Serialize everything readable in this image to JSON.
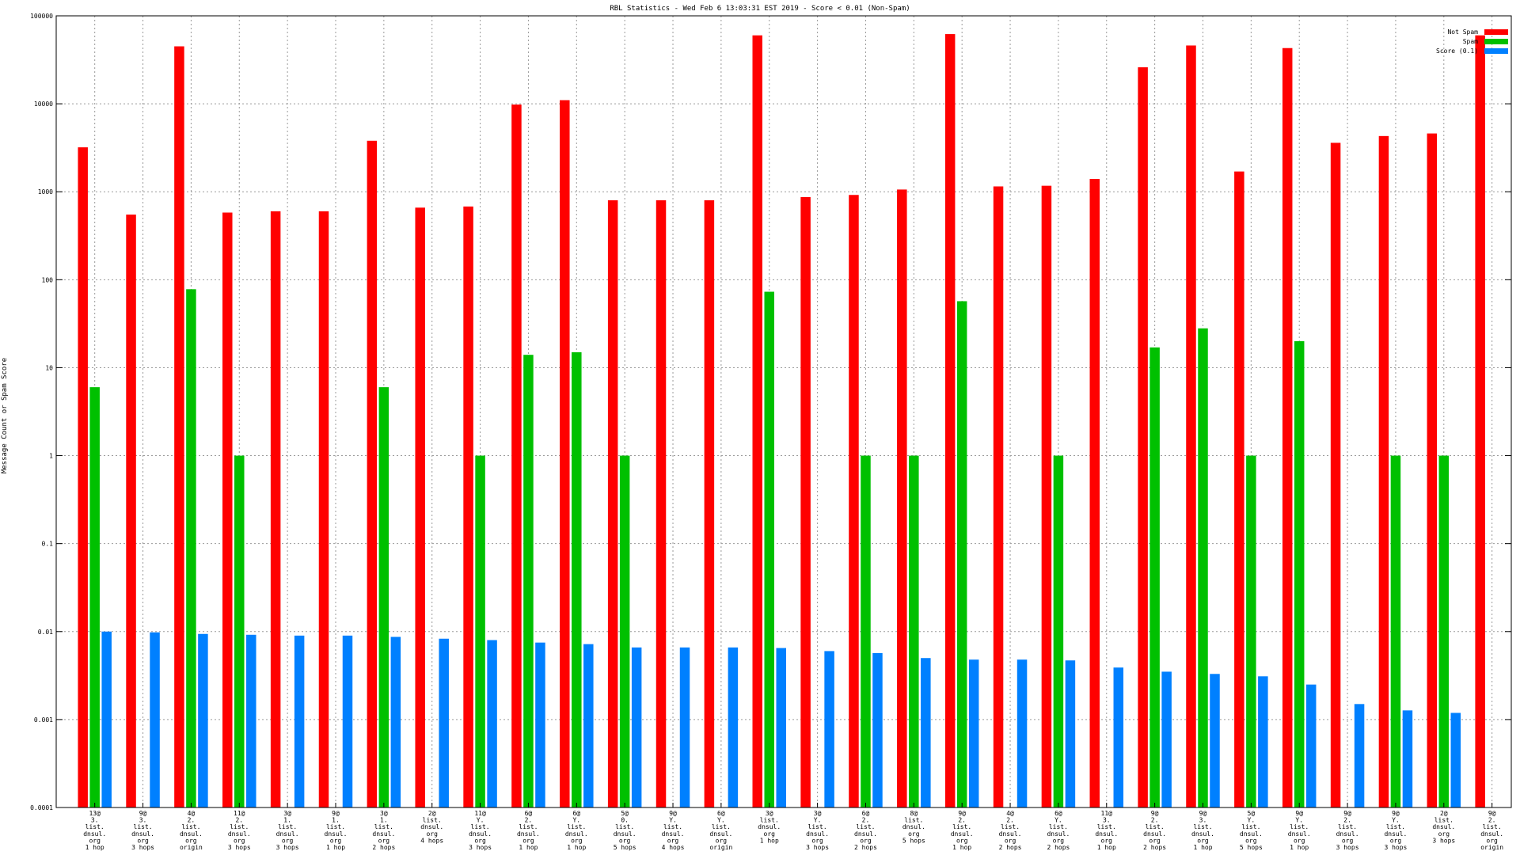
{
  "chart_data": {
    "type": "bar",
    "title": "RBL Statistics - Wed Feb  6 13:03:31 EST 2019 - Score < 0.01 (Non-Spam)",
    "ylabel": "Message Count or Spam Score",
    "xlabel": "",
    "yscale": "log",
    "ylim": [
      0.0001,
      100000
    ],
    "ytick_labels": [
      "0.0001",
      "0.001",
      "0.01",
      "0.1",
      "1",
      "10",
      "100",
      "1000",
      "10000",
      "100000"
    ],
    "ytick_values": [
      0.0001,
      0.001,
      0.01,
      0.1,
      1,
      10,
      100,
      1000,
      10000,
      100000
    ],
    "grid": true,
    "legend_position": "top-right",
    "categories": [
      [
        "13@",
        "3.",
        "list.",
        "dnsul.",
        "org",
        "1 hop"
      ],
      [
        "9@",
        "3.",
        "list.",
        "dnsul.",
        "org",
        "3 hops"
      ],
      [
        "4@",
        "2.",
        "list.",
        "dnsul.",
        "org",
        "origin"
      ],
      [
        "11@",
        "2.",
        "list.",
        "dnsul.",
        "org",
        "3 hops"
      ],
      [
        "3@",
        "1.",
        "list.",
        "dnsul.",
        "org",
        "3 hops"
      ],
      [
        "9@",
        "1.",
        "list.",
        "dnsul.",
        "org",
        "1 hop"
      ],
      [
        "3@",
        "1.",
        "list.",
        "dnsul.",
        "org",
        "2 hops"
      ],
      [
        "2@",
        "list.",
        "dnsul.",
        "org",
        "4 hops"
      ],
      [
        "11@",
        "Y.",
        "list.",
        "dnsul.",
        "org",
        "3 hops"
      ],
      [
        "6@",
        "2.",
        "list.",
        "dnsul.",
        "org",
        "1 hop"
      ],
      [
        "6@",
        "Y.",
        "list.",
        "dnsul.",
        "org",
        "1 hop"
      ],
      [
        "5@",
        "0.",
        "list.",
        "dnsul.",
        "org",
        "5 hops"
      ],
      [
        "9@",
        "Y.",
        "list.",
        "dnsul.",
        "org",
        "4 hops"
      ],
      [
        "6@",
        "Y.",
        "list.",
        "dnsul.",
        "org",
        "origin"
      ],
      [
        "3@",
        "list.",
        "dnsul.",
        "org",
        "1 hop"
      ],
      [
        "3@",
        "Y.",
        "list.",
        "dnsul.",
        "org",
        "3 hops"
      ],
      [
        "6@",
        "2.",
        "list.",
        "dnsul.",
        "org",
        "2 hops"
      ],
      [
        "8@",
        "list.",
        "dnsul.",
        "org",
        "5 hops"
      ],
      [
        "9@",
        "2.",
        "list.",
        "dnsul.",
        "org",
        "1 hop"
      ],
      [
        "4@",
        "2.",
        "list.",
        "dnsul.",
        "org",
        "2 hops"
      ],
      [
        "6@",
        "Y.",
        "list.",
        "dnsul.",
        "org",
        "2 hops"
      ],
      [
        "11@",
        "3.",
        "list.",
        "dnsul.",
        "org",
        "1 hop"
      ],
      [
        "9@",
        "2.",
        "list.",
        "dnsul.",
        "org",
        "2 hops"
      ],
      [
        "9@",
        "3.",
        "list.",
        "dnsul.",
        "org",
        "1 hop"
      ],
      [
        "5@",
        "Y.",
        "list.",
        "dnsul.",
        "org",
        "5 hops"
      ],
      [
        "9@",
        "Y.",
        "list.",
        "dnsul.",
        "org",
        "1 hop"
      ],
      [
        "9@",
        "2.",
        "list.",
        "dnsul.",
        "org",
        "3 hops"
      ],
      [
        "9@",
        "Y.",
        "list.",
        "dnsul.",
        "org",
        "3 hops"
      ],
      [
        "2@",
        "list.",
        "dnsul.",
        "org",
        "3 hops"
      ],
      [
        "9@",
        "2.",
        "list.",
        "dnsul.",
        "org",
        "origin"
      ]
    ],
    "series": [
      {
        "name": "Not Spam",
        "color": "#ff0000",
        "values": [
          3200,
          550,
          45000,
          580,
          600,
          600,
          3800,
          660,
          680,
          9800,
          11000,
          800,
          800,
          800,
          60000,
          870,
          920,
          1060,
          62000,
          1150,
          1170,
          1400,
          26000,
          46000,
          1700,
          43000,
          3600,
          4300,
          4600,
          60000
        ]
      },
      {
        "name": "Spam",
        "color": "#00c000",
        "values": [
          6,
          null,
          78,
          1,
          null,
          null,
          6,
          null,
          1,
          14,
          15,
          1,
          null,
          null,
          73,
          null,
          1,
          1,
          57,
          null,
          1,
          null,
          17,
          28,
          1,
          20,
          null,
          1,
          1,
          null
        ]
      },
      {
        "name": "Score (0.1)",
        "color": "#0080ff",
        "values": [
          0.01,
          0.0098,
          0.0094,
          0.0092,
          0.009,
          0.009,
          0.0087,
          0.0083,
          0.008,
          0.0075,
          0.0072,
          0.0066,
          0.0066,
          0.0066,
          0.0065,
          0.006,
          0.0057,
          0.005,
          0.0048,
          0.0048,
          0.0047,
          0.0039,
          0.0035,
          0.0033,
          0.0031,
          0.0025,
          0.0015,
          0.00127,
          0.00119,
          null
        ]
      }
    ]
  }
}
